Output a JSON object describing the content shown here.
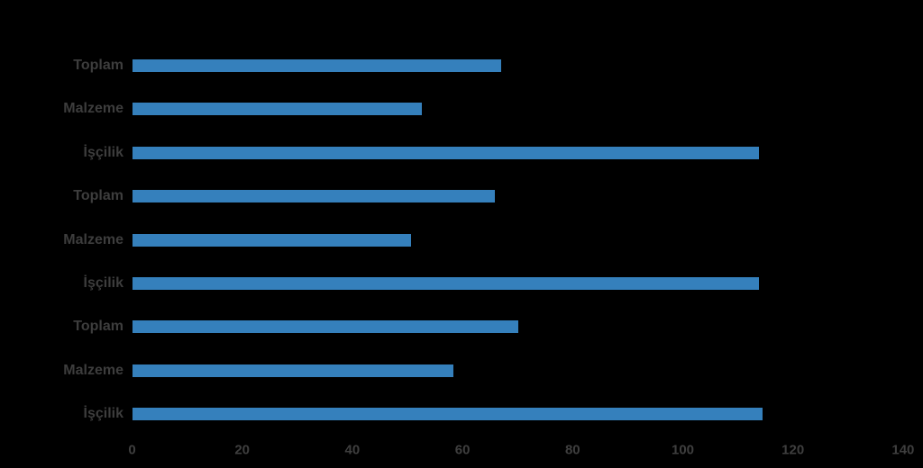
{
  "chart_data": {
    "type": "bar",
    "orientation": "horizontal",
    "title": "",
    "xlabel": "",
    "ylabel": "",
    "categories": [
      "Toplam",
      "Malzeme",
      "İşçilik",
      "Toplam",
      "Malzeme",
      "İşçilik",
      "Toplam",
      "Malzeme",
      "İşçilik"
    ],
    "values": [
      67.0,
      52.6,
      113.9,
      65.9,
      50.7,
      113.9,
      70.2,
      58.3,
      114.5
    ],
    "groups": [
      {
        "rows": [
          {
            "label": "Toplam",
            "value": 67.0
          },
          {
            "label": "Malzeme",
            "value": 52.6
          },
          {
            "label": "İşçilik",
            "value": 113.9
          }
        ]
      },
      {
        "rows": [
          {
            "label": "Toplam",
            "value": 65.9
          },
          {
            "label": "Malzeme",
            "value": 50.7
          },
          {
            "label": "İşçilik",
            "value": 113.9
          }
        ]
      },
      {
        "rows": [
          {
            "label": "Toplam",
            "value": 70.2
          },
          {
            "label": "Malzeme",
            "value": 58.3
          },
          {
            "label": "İşçilik",
            "value": 114.5
          }
        ]
      }
    ],
    "xlim": [
      0,
      140
    ],
    "x_ticks": [
      "0",
      "20",
      "40",
      "60",
      "80",
      "100",
      "120",
      "140"
    ],
    "x_tick_values": [
      0,
      20,
      40,
      60,
      80,
      100,
      120,
      140
    ],
    "bar_color": "#3580BC",
    "label_color": "#3d3d3d",
    "tick_color": "#3f3f3f",
    "background_color": "#000000",
    "grid": false,
    "legend": false
  }
}
